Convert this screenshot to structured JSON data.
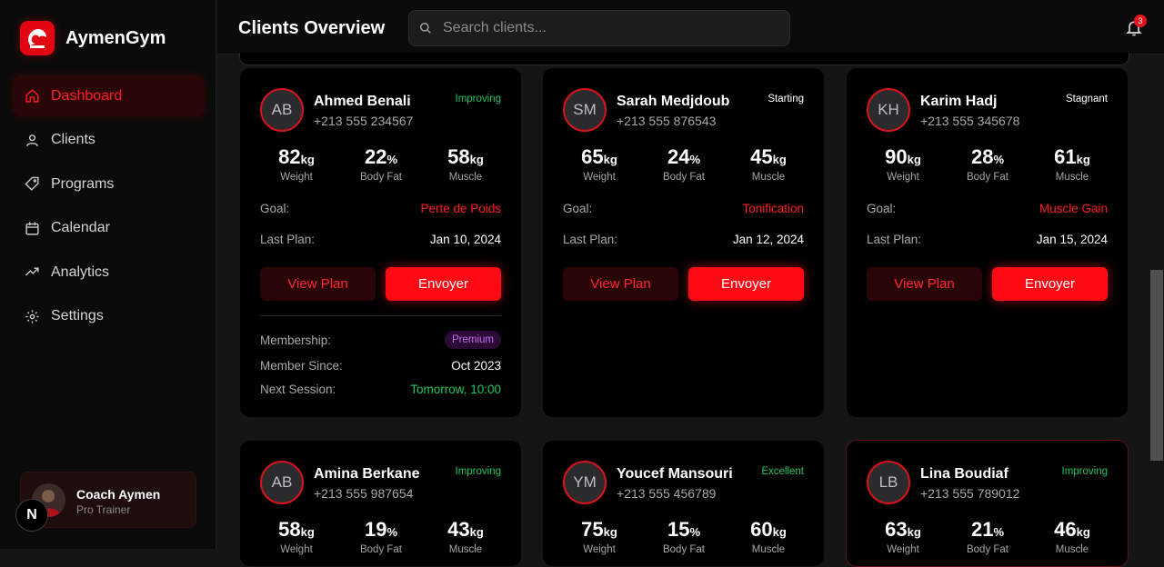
{
  "app": {
    "name": "AymenGym",
    "logo_text": "AYMEN GYM"
  },
  "page": {
    "title": "Clients Overview"
  },
  "search": {
    "placeholder": "Search clients..."
  },
  "notifications": {
    "count": "3"
  },
  "sidebar": {
    "items": [
      {
        "label": "Dashboard",
        "icon": "home-icon",
        "active": true
      },
      {
        "label": "Clients",
        "icon": "user-icon"
      },
      {
        "label": "Programs",
        "icon": "tag-icon"
      },
      {
        "label": "Calendar",
        "icon": "calendar-icon"
      },
      {
        "label": "Analytics",
        "icon": "trending-icon"
      },
      {
        "label": "Settings",
        "icon": "gear-icon"
      }
    ]
  },
  "coach": {
    "name": "Coach Aymen",
    "role": "Pro Trainer",
    "badge": "N"
  },
  "labels": {
    "weight": "Weight",
    "body_fat": "Body Fat",
    "muscle": "Muscle",
    "goal": "Goal:",
    "last_plan": "Last Plan:",
    "view_plan": "View Plan",
    "send": "Envoyer",
    "membership": "Membership:",
    "member_since": "Member Since:",
    "next_session": "Next Session:"
  },
  "colors": {
    "accent": "#ff0a14",
    "improving": "#22c55e",
    "goal": "#ff1a26",
    "premium": "#c86cf0"
  },
  "clients": [
    {
      "initials": "AB",
      "name": "Ahmed Benali",
      "phone": "+213 555 234567",
      "status": "Improving",
      "status_color": "#22c55e",
      "weight": "82",
      "weight_unit": "kg",
      "fat": "22",
      "fat_unit": "%",
      "muscle": "58",
      "muscle_unit": "kg",
      "goal": "Perte de Poids",
      "last_plan": "Jan 10, 2024",
      "membership": "Premium",
      "member_since": "Oct 2023",
      "next_session": "Tomorrow, 10:00"
    },
    {
      "initials": "SM",
      "name": "Sarah Medjdoub",
      "phone": "+213 555 876543",
      "status": "Starting",
      "status_color": "#ffffff",
      "weight": "65",
      "weight_unit": "kg",
      "fat": "24",
      "fat_unit": "%",
      "muscle": "45",
      "muscle_unit": "kg",
      "goal": "Tonification",
      "last_plan": "Jan 12, 2024"
    },
    {
      "initials": "KH",
      "name": "Karim Hadj",
      "phone": "+213 555 345678",
      "status": "Stagnant",
      "status_color": "#ffffff",
      "weight": "90",
      "weight_unit": "kg",
      "fat": "28",
      "fat_unit": "%",
      "muscle": "61",
      "muscle_unit": "kg",
      "goal": "Muscle Gain",
      "last_plan": "Jan 15, 2024"
    },
    {
      "initials": "AB",
      "name": "Amina Berkane",
      "phone": "+213 555 987654",
      "status": "Improving",
      "status_color": "#22c55e",
      "weight": "58",
      "weight_unit": "kg",
      "fat": "19",
      "fat_unit": "%",
      "muscle": "43",
      "muscle_unit": "kg"
    },
    {
      "initials": "YM",
      "name": "Youcef Mansouri",
      "phone": "+213 555 456789",
      "status": "Excellent",
      "status_color": "#22c55e",
      "weight": "75",
      "weight_unit": "kg",
      "fat": "15",
      "fat_unit": "%",
      "muscle": "60",
      "muscle_unit": "kg"
    },
    {
      "initials": "LB",
      "name": "Lina Boudiaf",
      "phone": "+213 555 789012",
      "status": "Improving",
      "status_color": "#22c55e",
      "weight": "63",
      "weight_unit": "kg",
      "fat": "21",
      "fat_unit": "%",
      "muscle": "46",
      "muscle_unit": "kg"
    }
  ]
}
